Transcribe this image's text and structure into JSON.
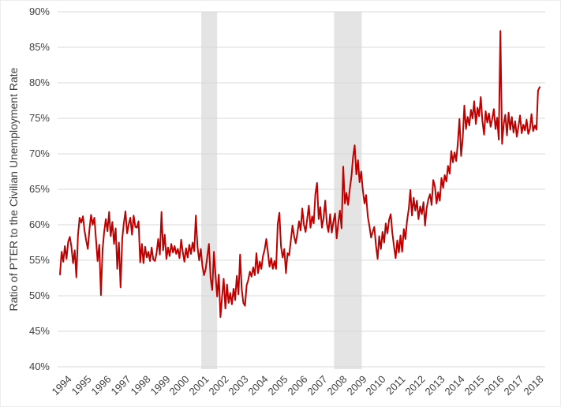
{
  "chart_data": {
    "type": "line",
    "title": "",
    "xlabel": "",
    "ylabel": "Ratio of PTER to the Civilian Unemployment Rate",
    "legend": "none",
    "grid": true,
    "line_color": "#c00000",
    "gridline_color": "#d9d9d9",
    "shading_color": "#e4e4e4",
    "tick_label_color": "#404040",
    "ylim": [
      40,
      90
    ],
    "y_tick_step": 5,
    "y_ticks": [
      "40%",
      "45%",
      "50%",
      "55%",
      "60%",
      "65%",
      "70%",
      "75%",
      "80%",
      "85%",
      "90%"
    ],
    "x_tick_years": [
      "1994",
      "1995",
      "1996",
      "1997",
      "1998",
      "1999",
      "2000",
      "2001",
      "2002",
      "2003",
      "2004",
      "2005",
      "2006",
      "2007",
      "2008",
      "2009",
      "2010",
      "2011",
      "2012",
      "2013",
      "2014",
      "2015",
      "2016",
      "2017",
      "2018"
    ],
    "x_tick_label_rotation": 45,
    "x_start": {
      "year": 1994,
      "month": 1
    },
    "frequency": "monthly",
    "shaded_regions": [
      {
        "name": "recession-2001",
        "start_month_index": 86.3,
        "end_month_index": 96.0
      },
      {
        "name": "recession-2008-2009",
        "start_month_index": 167.4,
        "end_month_index": 184.3
      }
    ],
    "values_percent": [
      53.0,
      56.2,
      54.8,
      57.0,
      55.2,
      57.6,
      58.3,
      56.9,
      54.6,
      56.4,
      52.6,
      58.5,
      61.0,
      60.3,
      61.2,
      59.2,
      57.8,
      56.6,
      59.4,
      61.4,
      60.0,
      61.0,
      57.9,
      54.9,
      57.2,
      50.1,
      56.5,
      59.0,
      60.8,
      59.1,
      61.8,
      58.4,
      60.4,
      57.3,
      59.5,
      53.8,
      57.5,
      51.2,
      58.0,
      60.2,
      61.9,
      58.8,
      60.1,
      61.0,
      58.6,
      61.3,
      59.7,
      59.6,
      60.5,
      54.7,
      57.3,
      54.6,
      56.9,
      55.4,
      56.2,
      54.9,
      56.8,
      55.1,
      54.9,
      56.0,
      58.0,
      55.8,
      61.8,
      56.4,
      58.6,
      55.2,
      56.8,
      55.6,
      57.3,
      56.1,
      57.0,
      55.9,
      56.6,
      55.3,
      57.9,
      56.2,
      54.8,
      56.7,
      55.4,
      57.2,
      55.9,
      57.5,
      56.3,
      61.3,
      56.9,
      55.0,
      56.6,
      54.2,
      52.9,
      53.8,
      55.6,
      57.3,
      52.5,
      50.8,
      56.2,
      53.0,
      49.9,
      53.0,
      47.0,
      49.8,
      52.4,
      48.2,
      51.6,
      49.0,
      50.4,
      48.8,
      51.0,
      49.4,
      52.8,
      50.2,
      55.8,
      51.0,
      49.0,
      48.6,
      51.5,
      52.2,
      53.4,
      52.7,
      54.0,
      52.9,
      56.0,
      53.2,
      54.8,
      53.8,
      55.6,
      56.5,
      58.0,
      56.2,
      54.1,
      55.3,
      53.8,
      54.9,
      53.8,
      60.1,
      61.7,
      57.0,
      55.4,
      56.6,
      53.2,
      56.0,
      55.7,
      57.8,
      59.9,
      58.4,
      57.4,
      58.8,
      60.5,
      59.2,
      62.3,
      60.0,
      59.0,
      60.8,
      62.7,
      59.6,
      61.2,
      60.2,
      64.3,
      65.9,
      60.8,
      62.5,
      59.6,
      61.0,
      63.4,
      60.2,
      59.0,
      61.5,
      58.9,
      60.4,
      61.6,
      58.1,
      60.3,
      62.0,
      59.5,
      68.2,
      63.0,
      64.5,
      62.8,
      65.0,
      66.8,
      69.5,
      71.2,
      67.1,
      69.1,
      66.0,
      67.5,
      64.8,
      63.0,
      64.2,
      61.2,
      59.8,
      58.2,
      59.0,
      59.7,
      57.1,
      55.2,
      58.4,
      56.6,
      59.0,
      57.5,
      60.2,
      58.8,
      60.7,
      61.5,
      58.9,
      57.0,
      55.3,
      57.8,
      56.1,
      58.5,
      56.2,
      59.4,
      58.0,
      60.6,
      62.2,
      64.9,
      61.3,
      63.8,
      62.0,
      63.4,
      60.8,
      62.6,
      61.5,
      63.2,
      59.9,
      62.4,
      63.6,
      64.3,
      62.8,
      66.3,
      65.4,
      63.0,
      64.6,
      63.4,
      66.6,
      65.2,
      67.0,
      66.1,
      68.3,
      67.2,
      70.4,
      68.8,
      70.2,
      69.0,
      71.5,
      74.9,
      69.7,
      72.3,
      76.8,
      73.5,
      75.2,
      74.0,
      76.2,
      75.0,
      77.4,
      74.2,
      76.5,
      75.3,
      78.0,
      74.6,
      72.7,
      76.0,
      74.4,
      75.7,
      73.8,
      74.9,
      76.3,
      73.5,
      75.1,
      72.0,
      87.3,
      71.4,
      74.2,
      75.5,
      72.6,
      75.8,
      73.4,
      75.2,
      73.0,
      74.6,
      72.4,
      73.8,
      75.4,
      72.9,
      74.1,
      73.3,
      74.8,
      72.8,
      73.5,
      75.6,
      73.2,
      74.0,
      73.4,
      78.9,
      79.4
    ]
  }
}
